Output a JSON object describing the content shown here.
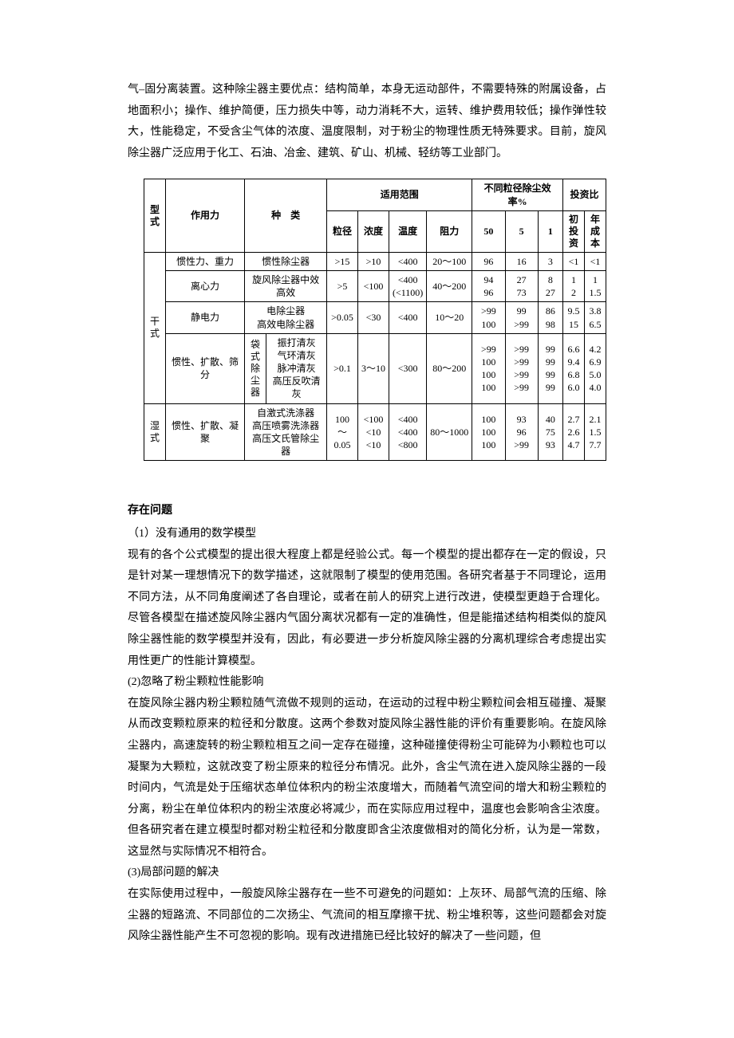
{
  "intro_paragraph": "气–固分离装置。这种除尘器主要优点：结构简单，本身无运动部件，不需要特殊的附属设备，占地面积小；操作、维护简便，压力损失中等，动力消耗不大，运转、维护费用较低；操作弹性较大，性能稳定，不受含尘气体的浓度、温度限制，对于粉尘的物理性质无特殊要求。目前，旋风除尘器广泛应用于化工、石油、冶金、建筑、矿山、机械、轻纺等工业部门。",
  "table": {
    "header": {
      "col_type": "型式",
      "col_force": "作用力",
      "col_kind": "种　类",
      "group_scope": "适用范围",
      "scope_diam": "粒径",
      "scope_conc": "浓度",
      "scope_temp": "温度",
      "scope_resist": "阻力",
      "group_eff": "不同粒径除尘效率%",
      "eff_50": "50",
      "eff_5": "5",
      "eff_1": "1",
      "group_invest": "投资比",
      "inv_init": "初投资",
      "inv_year": "年成本"
    },
    "dry_label": "干式",
    "dry_rows": [
      {
        "force": "惯性力、重力",
        "kind": "惯性除尘器",
        "diam": ">15",
        "conc": ">10",
        "temp": "<400",
        "resist": "20～100",
        "e50": "96",
        "e5": "16",
        "e1": "3",
        "init": "<1",
        "year": "<1"
      },
      {
        "force": "离心力",
        "kind": "旋风除尘器中效\n高效",
        "diam": ">5",
        "conc": "<100",
        "temp": "<400\n(<1100)",
        "resist": "40～200",
        "e50": "94\n96",
        "e5": "27\n73",
        "e1": "8\n27",
        "init": "1\n2",
        "year": "1\n1.5"
      },
      {
        "force": "静电力",
        "kind": "电除尘器\n高效电除尘器",
        "diam": ">0.05",
        "conc": "<30",
        "temp": "<400",
        "resist": "10～20",
        "e50": ">99\n100",
        "e5": "99\n>99",
        "e1": "86\n98",
        "init": "9.5\n15",
        "year": "3.8\n6.5"
      },
      {
        "force": "惯性、扩散、筛分",
        "kind_outer": "袋式除尘器",
        "kind_inner": "振打清灰\n气环清灰\n脉冲清灰\n高压反吹清灰",
        "diam": ">0.1",
        "conc": "3～10",
        "temp": "<300",
        "resist": "80～200",
        "e50": ">99\n100\n100\n100",
        "e5": ">99\n>99\n>99\n>99",
        "e1": "99\n99\n99\n99",
        "init": "6.6\n9.4\n6.8\n6.0",
        "year": "4.2\n6.9\n5.0\n4.0"
      }
    ],
    "wet_label": "湿式",
    "wet_row": {
      "force": "惯性、扩散、凝聚",
      "kind": "自激式洗涤器\n高压喷雾洗涤器\n高压文氏管除尘器",
      "diam": "100～\n0.05",
      "conc": "<100\n<10\n<10",
      "temp": "<400\n<400\n<800",
      "resist": "80～1000",
      "e50": "100\n100\n100",
      "e5": "93\n96\n>99",
      "e1": "40\n75\n93",
      "init": "2.7\n2.6\n4.7",
      "year": "2.1\n1.5\n7.7"
    }
  },
  "problems": {
    "title": "存在问题",
    "p1_title": "（1）没有通用的数学模型",
    "p1_body": "现有的各个公式模型的提出很大程度上都是经验公式。每一个模型的提出都存在一定的假设，只是针对某一理想情况下的数学描述，这就限制了模型的使用范围。各研究者基于不同理论，运用不同方法，从不同角度阐述了各自理论，或者在前人的研究上进行改进，使模型更趋于合理化。尽管各模型在描述旋风除尘器内气固分离状况都有一定的准确性，但是能描述结构相类似的旋风除尘器性能的数学模型并没有，因此，有必要进一步分析旋风除尘器的分离机理综合考虑提出实用性更广的性能计算模型。",
    "p2_title": "(2)忽略了粉尘颗粒性能影响",
    "p2_body": "在旋风除尘器内粉尘颗粒随气流做不规则的运动，在运动的过程中粉尘颗粒间会相互碰撞、凝聚从而改变颗粒原来的粒径和分散度。这两个参数对旋风除尘器性能的评价有重要影响。在旋风除尘器内，高速旋转的粉尘颗粒相互之间一定存在碰撞，这种碰撞使得粉尘可能碎为小颗粒也可以凝聚为大颗粒，这就改变了粉尘原来的粒径分布情况。此外，含尘气流在进入旋风除尘器的一段时间内，气流是处于压缩状态单位体积内的粉尘浓度增大，而随着气流空间的增大和粉尘颗粒的分离，粉尘在单位体积内的粉尘浓度必将减少，而在实际应用过程中，温度也会影响含尘浓度。但各研究者在建立模型时都对粉尘粒径和分散度即含尘浓度做相对的简化分析，认为是一常数，这显然与实际情况不相符合。",
    "p3_title": "(3)局部问题的解决",
    "p3_body": "在实际使用过程中，一般旋风除尘器存在一些不可避免的问题如：上灰环、局部气流的压缩、除尘器的短路流、不同部位的二次扬尘、气流间的相互摩擦干扰、粉尘堆积等，这些问题都会对旋风除尘器性能产生不可忽视的影响。现有改进措施已经比较好的解决了一些问题，但"
  }
}
